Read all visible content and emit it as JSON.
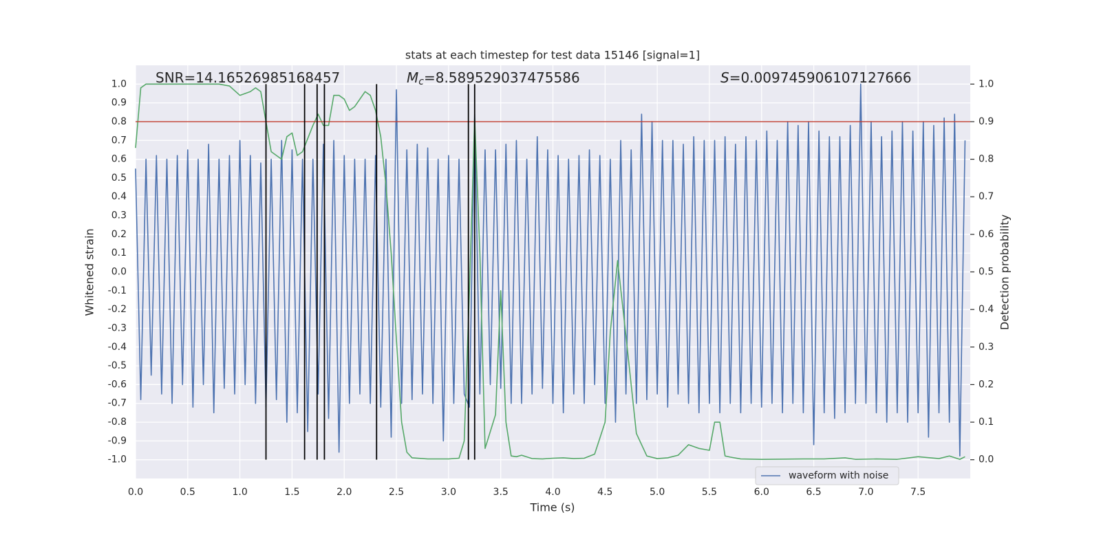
{
  "chart_data": {
    "type": "line",
    "title": "stats at each timestep for test data 15146 [signal=1]",
    "xlabel": "Time (s)",
    "ylabel": "Whitened strain",
    "y2label": "Detection probability",
    "xlim": [
      0,
      8.0
    ],
    "ylim": [
      -1.1,
      1.1
    ],
    "y2lim": [
      -0.05,
      1.05
    ],
    "xticks": [
      {
        "value": 0,
        "label": "0.0"
      },
      0.5,
      {
        "value": 1,
        "label": "1.0"
      },
      1.5,
      {
        "value": 2,
        "label": "2.0"
      },
      2.5,
      {
        "value": 3,
        "label": "3.0"
      },
      3.5,
      {
        "value": 4,
        "label": "4.0"
      },
      4.5,
      {
        "value": 5,
        "label": "5.0"
      },
      5.5,
      {
        "value": 6,
        "label": "6.0"
      },
      6.5,
      {
        "value": 7,
        "label": "7.0"
      },
      7.5
    ],
    "yticks": [
      {
        "value": -1,
        "label": "-1.0"
      },
      -0.9,
      -0.8,
      -0.7,
      -0.6,
      -0.5,
      -0.4,
      -0.3,
      -0.2,
      -0.1,
      {
        "value": 0,
        "label": "0.0"
      },
      0.1,
      0.2,
      0.3,
      0.4,
      0.5,
      0.6,
      0.7,
      0.8,
      0.9,
      {
        "value": 1,
        "label": "1.0"
      }
    ],
    "y2ticks": [
      {
        "value": 0,
        "label": "0.0"
      },
      0.1,
      0.2,
      0.3,
      0.4,
      0.5,
      0.6,
      0.7,
      0.8,
      0.9,
      {
        "value": 1,
        "label": "1.0"
      }
    ],
    "grid": true,
    "legend": "lower right",
    "series": [
      {
        "name": "waveform with noise",
        "color": "#4c72b0",
        "x": [
          0,
          0.05,
          0.1,
          0.15,
          0.2,
          0.25,
          0.3,
          0.35,
          0.4,
          0.45,
          0.5,
          0.55,
          0.6,
          0.65,
          0.7,
          0.75,
          0.8,
          0.85,
          0.9,
          0.95,
          1.0,
          1.05,
          1.1,
          1.15,
          1.2,
          1.25,
          1.3,
          1.35,
          1.4,
          1.45,
          1.5,
          1.55,
          1.6,
          1.65,
          1.7,
          1.75,
          1.8,
          1.85,
          1.9,
          1.95,
          2.0,
          2.05,
          2.1,
          2.15,
          2.2,
          2.25,
          2.3,
          2.35,
          2.4,
          2.45,
          2.5,
          2.55,
          2.6,
          2.65,
          2.7,
          2.75,
          2.8,
          2.85,
          2.9,
          2.95,
          3.0,
          3.05,
          3.1,
          3.15,
          3.2,
          3.25,
          3.3,
          3.35,
          3.4,
          3.45,
          3.5,
          3.55,
          3.6,
          3.65,
          3.7,
          3.75,
          3.8,
          3.85,
          3.9,
          3.95,
          4.0,
          4.05,
          4.1,
          4.15,
          4.2,
          4.25,
          4.3,
          4.35,
          4.4,
          4.45,
          4.5,
          4.55,
          4.6,
          4.65,
          4.7,
          4.75,
          4.8,
          4.85,
          4.9,
          4.95,
          5.0,
          5.05,
          5.1,
          5.15,
          5.2,
          5.25,
          5.3,
          5.35,
          5.4,
          5.45,
          5.5,
          5.55,
          5.6,
          5.65,
          5.7,
          5.75,
          5.8,
          5.85,
          5.9,
          5.95,
          6.0,
          6.05,
          6.1,
          6.15,
          6.2,
          6.25,
          6.3,
          6.35,
          6.4,
          6.45,
          6.5,
          6.55,
          6.6,
          6.65,
          6.7,
          6.75,
          6.8,
          6.85,
          6.9,
          6.95,
          7.0,
          7.05,
          7.1,
          7.15,
          7.2,
          7.25,
          7.3,
          7.35,
          7.4,
          7.45,
          7.5,
          7.55,
          7.6,
          7.65,
          7.7,
          7.75,
          7.8,
          7.85,
          7.9,
          7.95
        ],
        "values": [
          0.55,
          -0.68,
          0.6,
          -0.55,
          0.62,
          -0.65,
          0.6,
          -0.7,
          0.62,
          -0.6,
          0.65,
          -0.72,
          0.6,
          -0.6,
          0.68,
          -0.75,
          0.6,
          -0.62,
          0.62,
          -0.65,
          0.7,
          -0.6,
          0.62,
          -0.7,
          0.58,
          -0.72,
          0.6,
          -0.68,
          0.7,
          -0.8,
          0.65,
          -0.75,
          0.6,
          -0.85,
          0.6,
          -0.65,
          0.68,
          -0.78,
          0.7,
          -0.96,
          0.62,
          -0.7,
          0.6,
          -0.65,
          0.6,
          -0.7,
          0.62,
          -0.72,
          0.6,
          -0.88,
          0.97,
          -0.7,
          0.65,
          -0.68,
          0.68,
          -0.65,
          0.66,
          -0.7,
          0.6,
          -0.9,
          0.62,
          -0.7,
          0.6,
          -0.65,
          -0.72,
          0.84,
          -0.65,
          0.65,
          -0.6,
          0.65,
          -0.62,
          0.68,
          -0.7,
          0.7,
          -0.7,
          0.6,
          -0.65,
          0.72,
          -0.62,
          0.65,
          -0.7,
          0.62,
          -0.75,
          0.6,
          -0.65,
          0.62,
          -0.7,
          0.65,
          -0.6,
          0.62,
          -0.7,
          0.6,
          -0.8,
          0.7,
          -0.65,
          0.65,
          -0.7,
          0.84,
          -0.68,
          0.8,
          -0.65,
          0.7,
          -0.72,
          0.7,
          -0.65,
          0.68,
          -0.7,
          0.72,
          -0.75,
          0.7,
          -0.7,
          0.7,
          -0.75,
          0.72,
          -0.7,
          0.68,
          -0.75,
          0.72,
          -0.7,
          0.7,
          -0.72,
          0.75,
          -0.7,
          0.7,
          -0.75,
          0.8,
          -0.7,
          0.78,
          -0.75,
          0.8,
          -0.92,
          0.75,
          -0.75,
          0.72,
          -0.78,
          0.72,
          -0.75,
          0.78,
          -0.7,
          1.0,
          -0.7,
          0.8,
          -0.75,
          0.72,
          -0.8,
          0.75,
          -0.75,
          0.8,
          -0.8,
          0.75,
          -0.75,
          0.8,
          -0.88,
          0.78,
          -0.75,
          0.82,
          -0.8,
          0.84,
          -0.98,
          0.7
        ]
      },
      {
        "color": "#55a868",
        "axis": "y2",
        "x": [
          0,
          0.05,
          0.1,
          0.2,
          0.4,
          0.6,
          0.8,
          0.9,
          1.0,
          1.1,
          1.15,
          1.2,
          1.25,
          1.3,
          1.4,
          1.45,
          1.5,
          1.55,
          1.6,
          1.7,
          1.75,
          1.8,
          1.85,
          1.9,
          1.95,
          2.0,
          2.05,
          2.1,
          2.2,
          2.25,
          2.3,
          2.35,
          2.4,
          2.45,
          2.5,
          2.55,
          2.6,
          2.65,
          2.8,
          3.0,
          3.1,
          3.15,
          3.2,
          3.25,
          3.3,
          3.35,
          3.45,
          3.5,
          3.55,
          3.6,
          3.65,
          3.7,
          3.8,
          3.9,
          4.0,
          4.1,
          4.2,
          4.3,
          4.4,
          4.5,
          4.55,
          4.62,
          4.7,
          4.8,
          4.9,
          5.0,
          5.1,
          5.2,
          5.3,
          5.4,
          5.5,
          5.55,
          5.6,
          5.65,
          5.7,
          5.8,
          6.0,
          6.4,
          6.6,
          6.8,
          6.9,
          7.1,
          7.3,
          7.5,
          7.7,
          7.8,
          7.9,
          7.95
        ],
        "values": [
          0.83,
          0.99,
          1.0,
          1.0,
          1.0,
          1.0,
          1.0,
          0.995,
          0.97,
          0.98,
          0.99,
          0.98,
          0.9,
          0.82,
          0.8,
          0.86,
          0.87,
          0.81,
          0.82,
          0.89,
          0.92,
          0.89,
          0.89,
          0.97,
          0.97,
          0.96,
          0.93,
          0.94,
          0.98,
          0.97,
          0.93,
          0.86,
          0.73,
          0.55,
          0.32,
          0.1,
          0.02,
          0.005,
          0.002,
          0.002,
          0.004,
          0.05,
          0.45,
          0.91,
          0.55,
          0.03,
          0.12,
          0.45,
          0.1,
          0.01,
          0.008,
          0.012,
          0.003,
          0.002,
          0.004,
          0.005,
          0.003,
          0.004,
          0.015,
          0.1,
          0.34,
          0.53,
          0.33,
          0.07,
          0.01,
          0.003,
          0.005,
          0.012,
          0.04,
          0.03,
          0.025,
          0.1,
          0.1,
          0.01,
          0.007,
          0.002,
          0.001,
          0.002,
          0.002,
          0.005,
          0.001,
          0.002,
          0.001,
          0.008,
          0.003,
          0.01,
          0.001,
          0.008
        ]
      }
    ],
    "vlines": {
      "x": [
        1.25,
        1.62,
        1.74,
        1.81,
        2.31,
        3.19,
        3.25
      ],
      "ymin": -1,
      "ymax": 1,
      "color": "#000000"
    },
    "hline": {
      "value": 0.9,
      "axis": "y2",
      "color": "#c0392b"
    },
    "annotations": [
      {
        "text": "SNR=14.16526985168457"
      },
      {
        "symbol": "M",
        "sub": "c",
        "text": "=8.589529037475586"
      },
      {
        "symbol": "S",
        "text": "=0.009745906107127666"
      }
    ]
  }
}
